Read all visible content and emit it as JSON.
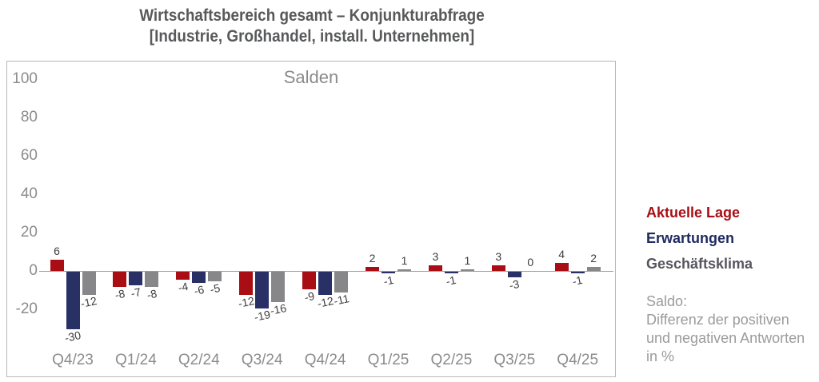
{
  "chart_data": {
    "type": "bar",
    "title": "Wirtschaftsbereich gesamt – Konjunkturabfrage",
    "subtitle": "[Industrie, Großhandel, install. Unternehmen]",
    "inner_title": "Salden",
    "categories": [
      "Q4/23",
      "Q1/24",
      "Q2/24",
      "Q3/24",
      "Q4/24",
      "Q1/25",
      "Q2/25",
      "Q3/25",
      "Q4/25"
    ],
    "series": [
      {
        "name": "Aktuelle Lage",
        "color": "#a80e14",
        "legend_color": "#a80e14",
        "values": [
          6,
          -8,
          -4,
          -12,
          -9,
          2,
          3,
          3,
          4
        ]
      },
      {
        "name": "Erwartungen",
        "color": "#293066",
        "legend_color": "#1e2a5e",
        "values": [
          -30,
          -7,
          -6,
          -19,
          -12,
          -1,
          -1,
          -3,
          -1
        ]
      },
      {
        "name": "Geschäftsklima",
        "color": "#87878a",
        "legend_color": "#56565e",
        "values": [
          -12,
          -8,
          -5,
          -16,
          -11,
          1,
          1,
          0,
          2
        ]
      }
    ],
    "yticks": [
      100,
      80,
      60,
      40,
      20,
      0,
      -20
    ],
    "ylim": [
      -40,
      108
    ],
    "grid": false,
    "legend_position": "right",
    "axis_label_color": "#8c8c8c",
    "value_label_color": "#3d3d3d",
    "note_lines": [
      "Saldo:",
      "Differenz der positiven",
      "und negativen Antworten",
      "in %"
    ]
  }
}
